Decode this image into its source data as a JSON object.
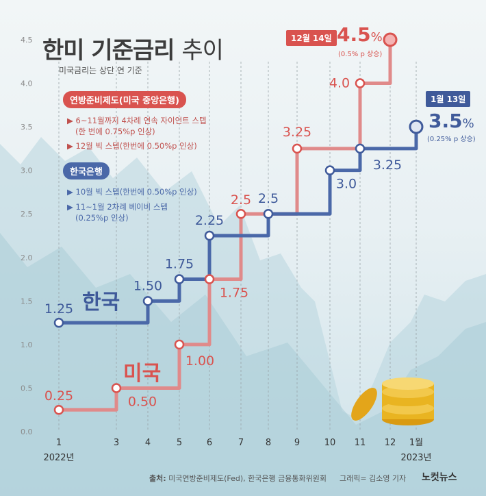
{
  "title": {
    "main": "한미 기준금리",
    "thin": "추이"
  },
  "subtitle": "미국금리는 상단 연 기준",
  "us_box": {
    "label": "연방준비제도(미국 중앙은행)",
    "notes": [
      "▶ 6~11월까지 4차례 연속 자이언트 스텝",
      "(한 번에 0.75%p 인상)",
      "▶ 12월 빅 스텝(한번에 0.50%p 인상)"
    ]
  },
  "kr_box": {
    "label": "한국은행",
    "notes": [
      "▶ 10월 빅 스텝(한번에 0.50%p 인상)",
      "▶ 11~1월 2차례 베이비 스텝",
      "(0.25%p 인상)"
    ]
  },
  "callouts": {
    "us": {
      "date": "12월 14일",
      "value": "4.5",
      "unit": "%",
      "note": "(0.5% p 상승)"
    },
    "kr": {
      "date": "1월 13일",
      "value": "3.5",
      "unit": "%",
      "note": "(0.25% p 상승)"
    }
  },
  "series_labels": {
    "kr": "한국",
    "us": "미국"
  },
  "source": {
    "label": "출처:",
    "text": "미국연방준비제도(Fed), 한국은행 금융통화위원회"
  },
  "graphic_credit": "그래픽= 김소영 기자",
  "logo": "노컷뉴스",
  "colors": {
    "us": "#d9534f",
    "us_line": "#e08a8a",
    "kr": "#3f5a9a",
    "kr_line": "#4a68a8"
  },
  "chart_data": {
    "type": "line",
    "step": true,
    "x": [
      "1",
      "3",
      "4",
      "5",
      "6",
      "7",
      "8",
      "9",
      "10",
      "11",
      "12",
      "1월"
    ],
    "x_year_labels": [
      {
        "at": "1",
        "text": "2022년"
      },
      {
        "at": "1월",
        "text": "2023년"
      }
    ],
    "ylim": [
      0,
      4.5
    ],
    "yticks": [
      "0.0",
      "0.5",
      "1.0",
      "1.5",
      "2.0",
      "2.5",
      "3.0",
      "3.5",
      "4.0",
      "4.5"
    ],
    "series": [
      {
        "name": "미국",
        "points": [
          {
            "x": "1",
            "y": 0.25,
            "label": "0.25"
          },
          {
            "x": "3",
            "y": 0.5,
            "label": "0.50"
          },
          {
            "x": "5",
            "y": 1.0,
            "label": "1.00"
          },
          {
            "x": "6",
            "y": 1.75,
            "label": "1.75"
          },
          {
            "x": "7",
            "y": 2.5,
            "label": "2.5"
          },
          {
            "x": "9",
            "y": 3.25,
            "label": "3.25"
          },
          {
            "x": "11",
            "y": 4.0,
            "label": "4.0"
          },
          {
            "x": "12",
            "y": 4.5,
            "label": ""
          }
        ]
      },
      {
        "name": "한국",
        "points": [
          {
            "x": "1",
            "y": 1.25,
            "label": "1.25"
          },
          {
            "x": "4",
            "y": 1.5,
            "label": "1.50"
          },
          {
            "x": "5",
            "y": 1.75,
            "label": "1.75"
          },
          {
            "x": "6",
            "y": 2.25,
            "label": "2.25"
          },
          {
            "x": "8",
            "y": 2.5,
            "label": "2.5"
          },
          {
            "x": "10",
            "y": 3.0,
            "label": "3.0"
          },
          {
            "x": "11",
            "y": 3.25,
            "label": "3.25"
          },
          {
            "x": "1월",
            "y": 3.5,
            "label": ""
          }
        ]
      }
    ]
  }
}
